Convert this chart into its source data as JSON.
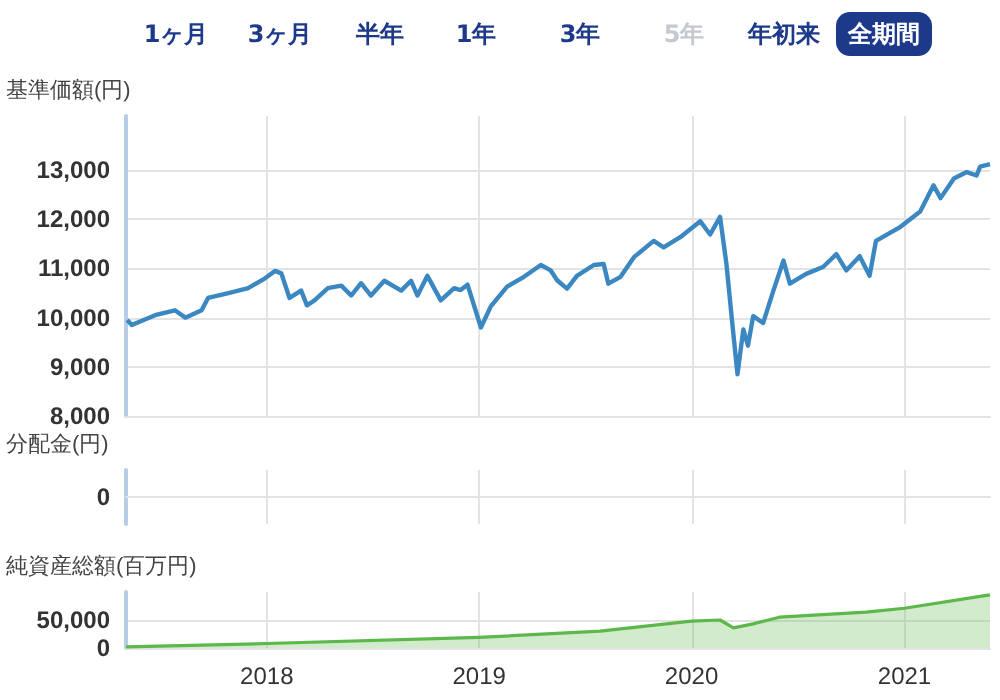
{
  "chart_data": [
    {
      "type": "line",
      "ylabel": "基準価額(円)",
      "annotations": [
        "1ヶ月",
        "3ヶ月",
        "半年",
        "1年",
        "3年",
        "5年",
        "年初来",
        "全期間"
      ],
      "x": [
        "2017-05-06",
        "2017-05-14",
        "2017-06-23",
        "2017-07-27",
        "2017-08-14",
        "2017-09-11",
        "2017-09-22",
        "2017-10-27",
        "2017-11-30",
        "2017-12-29",
        "2018-01-15",
        "2018-01-26",
        "2018-02-09",
        "2018-03-01",
        "2018-03-11",
        "2018-03-24",
        "2018-04-16",
        "2018-05-09",
        "2018-05-26",
        "2018-06-12",
        "2018-06-29",
        "2018-07-22",
        "2018-08-20",
        "2018-09-06",
        "2018-09-17",
        "2018-10-04",
        "2018-10-27",
        "2018-11-19",
        "2018-11-30",
        "2018-12-12",
        "2019-01-04",
        "2019-01-21",
        "2019-02-18",
        "2019-03-19",
        "2019-04-17",
        "2019-05-04",
        "2019-05-15",
        "2019-06-01",
        "2019-06-18",
        "2019-07-17",
        "2019-08-03",
        "2019-08-11",
        "2019-09-01",
        "2019-09-24",
        "2019-10-28",
        "2019-11-14",
        "2019-12-12",
        "2020-01-16",
        "2020-02-02",
        "2020-02-19",
        "2020-03-01",
        "2020-03-11",
        "2020-03-20",
        "2020-03-30",
        "2020-04-07",
        "2020-04-16",
        "2020-05-03",
        "2020-05-21",
        "2020-06-07",
        "2020-06-18",
        "2020-07-16",
        "2020-08-14",
        "2020-09-06",
        "2020-09-23",
        "2020-10-16",
        "2020-11-02",
        "2020-11-13",
        "2020-12-23",
        "2021-01-28",
        "2021-02-20",
        "2021-03-04",
        "2021-03-27",
        "2021-04-18",
        "2021-05-05",
        "2021-05-11",
        "2021-05-28"
      ],
      "series": [
        {
          "color": "#3b87c2",
          "values": [
            9950,
            9850,
            10050,
            10150,
            10000,
            10150,
            10400,
            10500,
            10600,
            10800,
            10950,
            10900,
            10400,
            10550,
            10250,
            10350,
            10600,
            10650,
            10450,
            10700,
            10450,
            10750,
            10550,
            10750,
            10450,
            10850,
            10350,
            10600,
            10560,
            10670,
            9800,
            10230,
            10630,
            10830,
            11070,
            10960,
            10760,
            10590,
            10850,
            11070,
            11090,
            10690,
            10830,
            11230,
            11560,
            11430,
            11630,
            11960,
            11690,
            12050,
            11090,
            9890,
            8850,
            9760,
            9430,
            10030,
            9890,
            10560,
            11160,
            10690,
            10890,
            11030,
            11290,
            10960,
            11250,
            10850,
            11560,
            11830,
            12160,
            12690,
            12430,
            12830,
            12960,
            12890,
            13070,
            13120
          ]
        }
      ],
      "xlim": [
        "2017-05-04",
        "2021-05-28"
      ],
      "xticks": [
        "2018",
        "2019",
        "2020",
        "2021"
      ],
      "ylim": [
        8000,
        14100
      ],
      "yticks": [
        {
          "value": 8000,
          "label": "8,000"
        },
        {
          "value": 9000,
          "label": "9,000"
        },
        {
          "value": 10000,
          "label": "10,000"
        },
        {
          "value": 11000,
          "label": "11,000"
        },
        {
          "value": 12000,
          "label": "12,000"
        },
        {
          "value": 13000,
          "label": "13,000"
        }
      ],
      "grid": true,
      "tick_labels": "y",
      "marker": "none"
    },
    {
      "type": "other",
      "ylabel": "分配金(円)",
      "annotations": [
        "0"
      ]
    },
    {
      "type": "area",
      "ylabel": "純資産総額(百万円)",
      "x": [
        "2017-05-04",
        "2018-01-01",
        "2019-01-01",
        "2019-07-28",
        "2020-01-01",
        "2020-02-19",
        "2020-03-13",
        "2020-04-16",
        "2020-05-31",
        "2020-10-27",
        "2021-01-01",
        "2021-05-22",
        "2021-05-28"
      ],
      "series": [
        {
          "color": "#5cb84a",
          "values": [
            2000,
            8000,
            19000,
            30000,
            48000,
            50000,
            36000,
            43000,
            55000,
            64000,
            71000,
            94000,
            95000
          ]
        }
      ],
      "xlim": [
        "2017-05-04",
        "2021-05-28"
      ],
      "xticks": [
        "2018",
        "2019",
        "2020",
        "2021"
      ],
      "ylim": [
        0,
        100000
      ],
      "yticks": [
        0,
        {
          "value": 50000,
          "label": "50,000"
        }
      ],
      "grid": true,
      "marker": "none"
    }
  ]
}
